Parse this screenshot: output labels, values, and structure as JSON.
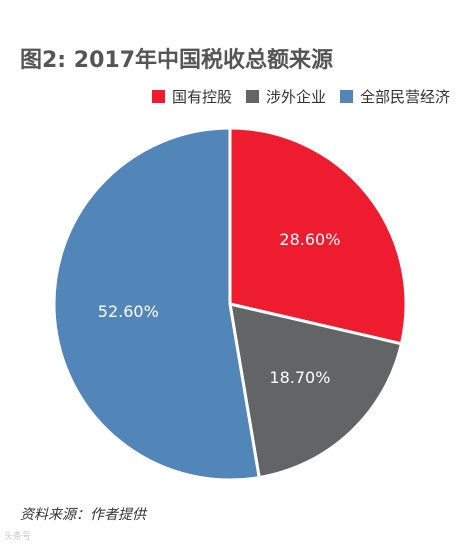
{
  "chart_data": {
    "type": "pie",
    "title": "图2: 2017年中国税收总额来源",
    "slices": [
      {
        "label": "国有控股",
        "value": 28.6,
        "value_label": "28.60%",
        "color": "#ED1C2E"
      },
      {
        "label": "涉外企业",
        "value": 18.7,
        "value_label": "18.70%",
        "color": "#636466"
      },
      {
        "label": "全部民营经济",
        "value": 52.6,
        "value_label": "52.60%",
        "color": "#5285B8"
      }
    ],
    "start_angle": "12 o'clock",
    "direction": "clockwise",
    "legend_position": "top-right"
  },
  "source": "资料来源：作者提供",
  "watermark": "头条号"
}
